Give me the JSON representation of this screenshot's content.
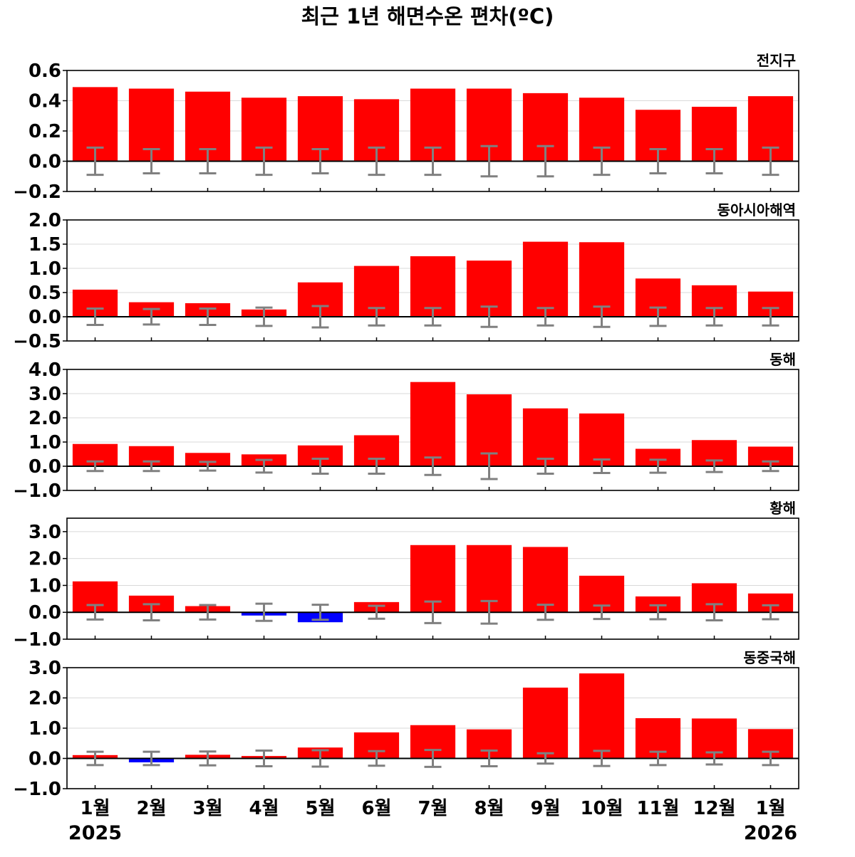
{
  "chart_data": {
    "type": "bar",
    "title": "최근 1년 해면수온 편차(ºC)",
    "categories": [
      "1월",
      "2월",
      "3월",
      "4월",
      "5월",
      "6월",
      "7월",
      "8월",
      "9월",
      "10월",
      "11월",
      "12월",
      "1월"
    ],
    "year_labels": {
      "start": "2025",
      "end": "2026"
    },
    "colors": {
      "positive": "#ff0000",
      "negative": "#0000ff",
      "errorbar": "#808080",
      "zero_line": "#000000",
      "grid": "#d9d9d9"
    },
    "grid": true,
    "panels": [
      {
        "name": "전지구",
        "ylim": [
          -0.2,
          0.6
        ],
        "ticks": [
          "0.6",
          "0.4",
          "0.2",
          "0.0",
          "−0.2"
        ],
        "tick_values": [
          0.6,
          0.4,
          0.2,
          0.0,
          -0.2
        ],
        "values": [
          0.49,
          0.48,
          0.46,
          0.42,
          0.43,
          0.41,
          0.48,
          0.48,
          0.45,
          0.42,
          0.34,
          0.36,
          0.43
        ],
        "err": [
          0.09,
          0.08,
          0.08,
          0.09,
          0.08,
          0.09,
          0.09,
          0.1,
          0.1,
          0.09,
          0.08,
          0.08,
          0.09
        ]
      },
      {
        "name": "동아시아해역",
        "ylim": [
          -0.5,
          2.0
        ],
        "ticks": [
          "2.0",
          "1.5",
          "1.0",
          "0.5",
          "0.0",
          "−0.5"
        ],
        "tick_values": [
          2.0,
          1.5,
          1.0,
          0.5,
          0.0,
          -0.5
        ],
        "values": [
          0.56,
          0.3,
          0.28,
          0.15,
          0.71,
          1.05,
          1.25,
          1.16,
          1.55,
          1.54,
          0.79,
          0.65,
          0.52
        ],
        "err": [
          0.17,
          0.16,
          0.17,
          0.19,
          0.22,
          0.18,
          0.18,
          0.21,
          0.18,
          0.21,
          0.19,
          0.18,
          0.18
        ]
      },
      {
        "name": "동해",
        "ylim": [
          -1.0,
          4.0
        ],
        "ticks": [
          "4.0",
          "3.0",
          "2.0",
          "1.0",
          "0.0",
          "−1.0"
        ],
        "tick_values": [
          4.0,
          3.0,
          2.0,
          1.0,
          0.0,
          -1.0
        ],
        "values": [
          0.92,
          0.83,
          0.55,
          0.49,
          0.86,
          1.28,
          3.48,
          2.97,
          2.39,
          2.18,
          0.72,
          1.08,
          0.81
        ],
        "err": [
          0.2,
          0.2,
          0.18,
          0.26,
          0.31,
          0.31,
          0.36,
          0.53,
          0.31,
          0.28,
          0.27,
          0.24,
          0.2
        ]
      },
      {
        "name": "황해",
        "ylim": [
          -1.0,
          3.5
        ],
        "ticks": [
          "3.0",
          "2.0",
          "1.0",
          "0.0",
          "−1.0"
        ],
        "tick_values": [
          3.0,
          2.0,
          1.0,
          0.0,
          -1.0
        ],
        "values": [
          1.15,
          0.62,
          0.23,
          -0.12,
          -0.37,
          0.38,
          2.5,
          2.5,
          2.43,
          1.36,
          0.59,
          1.08,
          0.7
        ],
        "err": [
          0.27,
          0.3,
          0.27,
          0.32,
          0.28,
          0.24,
          0.4,
          0.42,
          0.28,
          0.25,
          0.26,
          0.3,
          0.26
        ]
      },
      {
        "name": "동중국해",
        "ylim": [
          -1.0,
          3.0
        ],
        "ticks": [
          "3.0",
          "2.0",
          "1.0",
          "0.0",
          "−1.0"
        ],
        "tick_values": [
          3.0,
          2.0,
          1.0,
          0.0,
          -1.0
        ],
        "values": [
          0.11,
          -0.13,
          0.12,
          0.08,
          0.36,
          0.86,
          1.1,
          0.96,
          2.34,
          2.81,
          1.33,
          1.32,
          0.97
        ],
        "err": [
          0.22,
          0.22,
          0.23,
          0.26,
          0.27,
          0.24,
          0.28,
          0.26,
          0.17,
          0.25,
          0.22,
          0.2,
          0.22
        ]
      }
    ]
  }
}
